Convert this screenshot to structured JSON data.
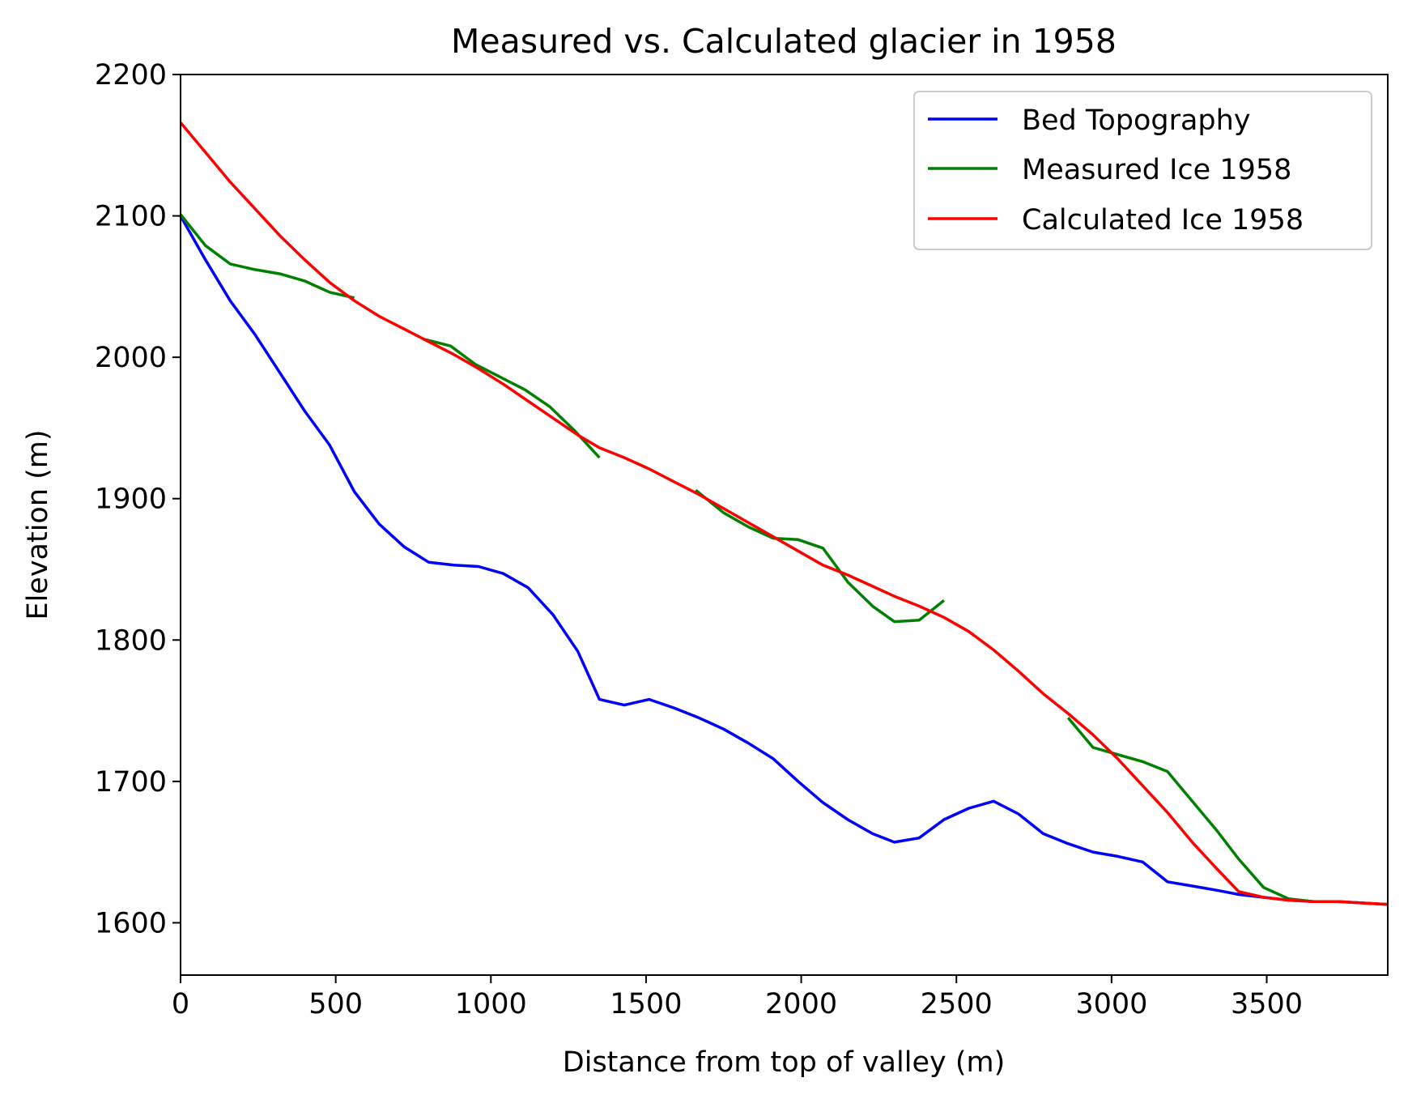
{
  "chart_data": {
    "type": "line",
    "title": "Measured vs. Calculated glacier in 1958",
    "xlabel": "Distance from top of valley (m)",
    "ylabel": "Elevation (m)",
    "xlim": [
      0,
      3890
    ],
    "ylim": [
      1563,
      2200
    ],
    "xticks": [
      0,
      500,
      1000,
      1500,
      2000,
      2500,
      3000,
      3500
    ],
    "yticks": [
      1600,
      1700,
      1800,
      1900,
      2000,
      2100,
      2200
    ],
    "grid": false,
    "legend_position": "top-right",
    "series": [
      {
        "name": "Bed Topography",
        "color": "#0000ff",
        "segments": [
          [
            [
              0,
              2100
            ],
            [
              80,
              2069
            ],
            [
              160,
              2040
            ],
            [
              240,
              2016
            ],
            [
              320,
              1989
            ],
            [
              400,
              1962
            ],
            [
              480,
              1938
            ],
            [
              560,
              1905
            ],
            [
              640,
              1882
            ],
            [
              720,
              1866
            ],
            [
              800,
              1855
            ],
            [
              880,
              1853
            ],
            [
              960,
              1852
            ],
            [
              1040,
              1847
            ],
            [
              1120,
              1837
            ],
            [
              1200,
              1818
            ],
            [
              1280,
              1792
            ],
            [
              1350,
              1758
            ],
            [
              1430,
              1754
            ],
            [
              1510,
              1758
            ],
            [
              1590,
              1752
            ],
            [
              1670,
              1745
            ],
            [
              1750,
              1737
            ],
            [
              1830,
              1727
            ],
            [
              1910,
              1716
            ],
            [
              1990,
              1700
            ],
            [
              2070,
              1685
            ],
            [
              2150,
              1673
            ],
            [
              2230,
              1663
            ],
            [
              2300,
              1657
            ],
            [
              2380,
              1660
            ],
            [
              2460,
              1673
            ],
            [
              2540,
              1681
            ],
            [
              2620,
              1686
            ],
            [
              2700,
              1677
            ],
            [
              2780,
              1663
            ],
            [
              2860,
              1656
            ],
            [
              2940,
              1650
            ],
            [
              3020,
              1647
            ],
            [
              3100,
              1643
            ],
            [
              3180,
              1629
            ],
            [
              3260,
              1626
            ],
            [
              3340,
              1623
            ],
            [
              3410,
              1620
            ],
            [
              3490,
              1618
            ],
            [
              3570,
              1616
            ],
            [
              3650,
              1615
            ],
            [
              3730,
              1615
            ],
            [
              3810,
              1614
            ],
            [
              3890,
              1613
            ]
          ]
        ]
      },
      {
        "name": "Measured Ice 1958",
        "color": "#008000",
        "segments": [
          [
            [
              0,
              2101
            ],
            [
              80,
              2079
            ],
            [
              160,
              2066
            ],
            [
              240,
              2062
            ],
            [
              320,
              2059
            ],
            [
              400,
              2054
            ],
            [
              480,
              2046
            ],
            [
              560,
              2042
            ]
          ],
          [
            [
              780,
              2013
            ],
            [
              870,
              2008
            ],
            [
              950,
              1995
            ],
            [
              1030,
              1986
            ],
            [
              1110,
              1977
            ],
            [
              1190,
              1965
            ],
            [
              1270,
              1948
            ],
            [
              1350,
              1929
            ]
          ],
          [
            [
              1660,
              1906
            ],
            [
              1750,
              1890
            ],
            [
              1830,
              1880
            ],
            [
              1910,
              1872
            ],
            [
              1990,
              1871
            ],
            [
              2070,
              1865
            ],
            [
              2150,
              1841
            ],
            [
              2230,
              1824
            ],
            [
              2300,
              1813
            ],
            [
              2380,
              1814
            ],
            [
              2460,
              1828
            ]
          ],
          [
            [
              2860,
              1745
            ],
            [
              2940,
              1724
            ],
            [
              3020,
              1719
            ],
            [
              3100,
              1714
            ],
            [
              3180,
              1707
            ],
            [
              3260,
              1686
            ],
            [
              3340,
              1665
            ],
            [
              3410,
              1645
            ],
            [
              3490,
              1625
            ],
            [
              3570,
              1617
            ],
            [
              3650,
              1615
            ],
            [
              3730,
              1615
            ],
            [
              3810,
              1614
            ],
            [
              3890,
              1613
            ]
          ]
        ]
      },
      {
        "name": "Calculated Ice 1958",
        "color": "#ff0000",
        "segments": [
          [
            [
              0,
              2166
            ],
            [
              80,
              2145
            ],
            [
              160,
              2124
            ],
            [
              240,
              2105
            ],
            [
              320,
              2086
            ],
            [
              400,
              2069
            ],
            [
              480,
              2053
            ],
            [
              560,
              2040
            ],
            [
              640,
              2029
            ],
            [
              720,
              2020
            ],
            [
              800,
              2011
            ],
            [
              880,
              2002
            ],
            [
              960,
              1992
            ],
            [
              1040,
              1981
            ],
            [
              1120,
              1969
            ],
            [
              1200,
              1957
            ],
            [
              1280,
              1945
            ],
            [
              1350,
              1936
            ],
            [
              1430,
              1929
            ],
            [
              1510,
              1921
            ],
            [
              1590,
              1912
            ],
            [
              1670,
              1903
            ],
            [
              1750,
              1893
            ],
            [
              1830,
              1883
            ],
            [
              1910,
              1873
            ],
            [
              1990,
              1863
            ],
            [
              2070,
              1853
            ],
            [
              2150,
              1846
            ],
            [
              2230,
              1838
            ],
            [
              2300,
              1831
            ],
            [
              2380,
              1824
            ],
            [
              2460,
              1816
            ],
            [
              2540,
              1806
            ],
            [
              2620,
              1793
            ],
            [
              2700,
              1778
            ],
            [
              2780,
              1762
            ],
            [
              2860,
              1748
            ],
            [
              2940,
              1733
            ],
            [
              3020,
              1716
            ],
            [
              3100,
              1697
            ],
            [
              3180,
              1678
            ],
            [
              3260,
              1657
            ],
            [
              3340,
              1638
            ],
            [
              3410,
              1622
            ],
            [
              3490,
              1618
            ],
            [
              3570,
              1616
            ],
            [
              3650,
              1615
            ],
            [
              3730,
              1615
            ],
            [
              3810,
              1614
            ],
            [
              3890,
              1613
            ]
          ]
        ]
      }
    ]
  }
}
